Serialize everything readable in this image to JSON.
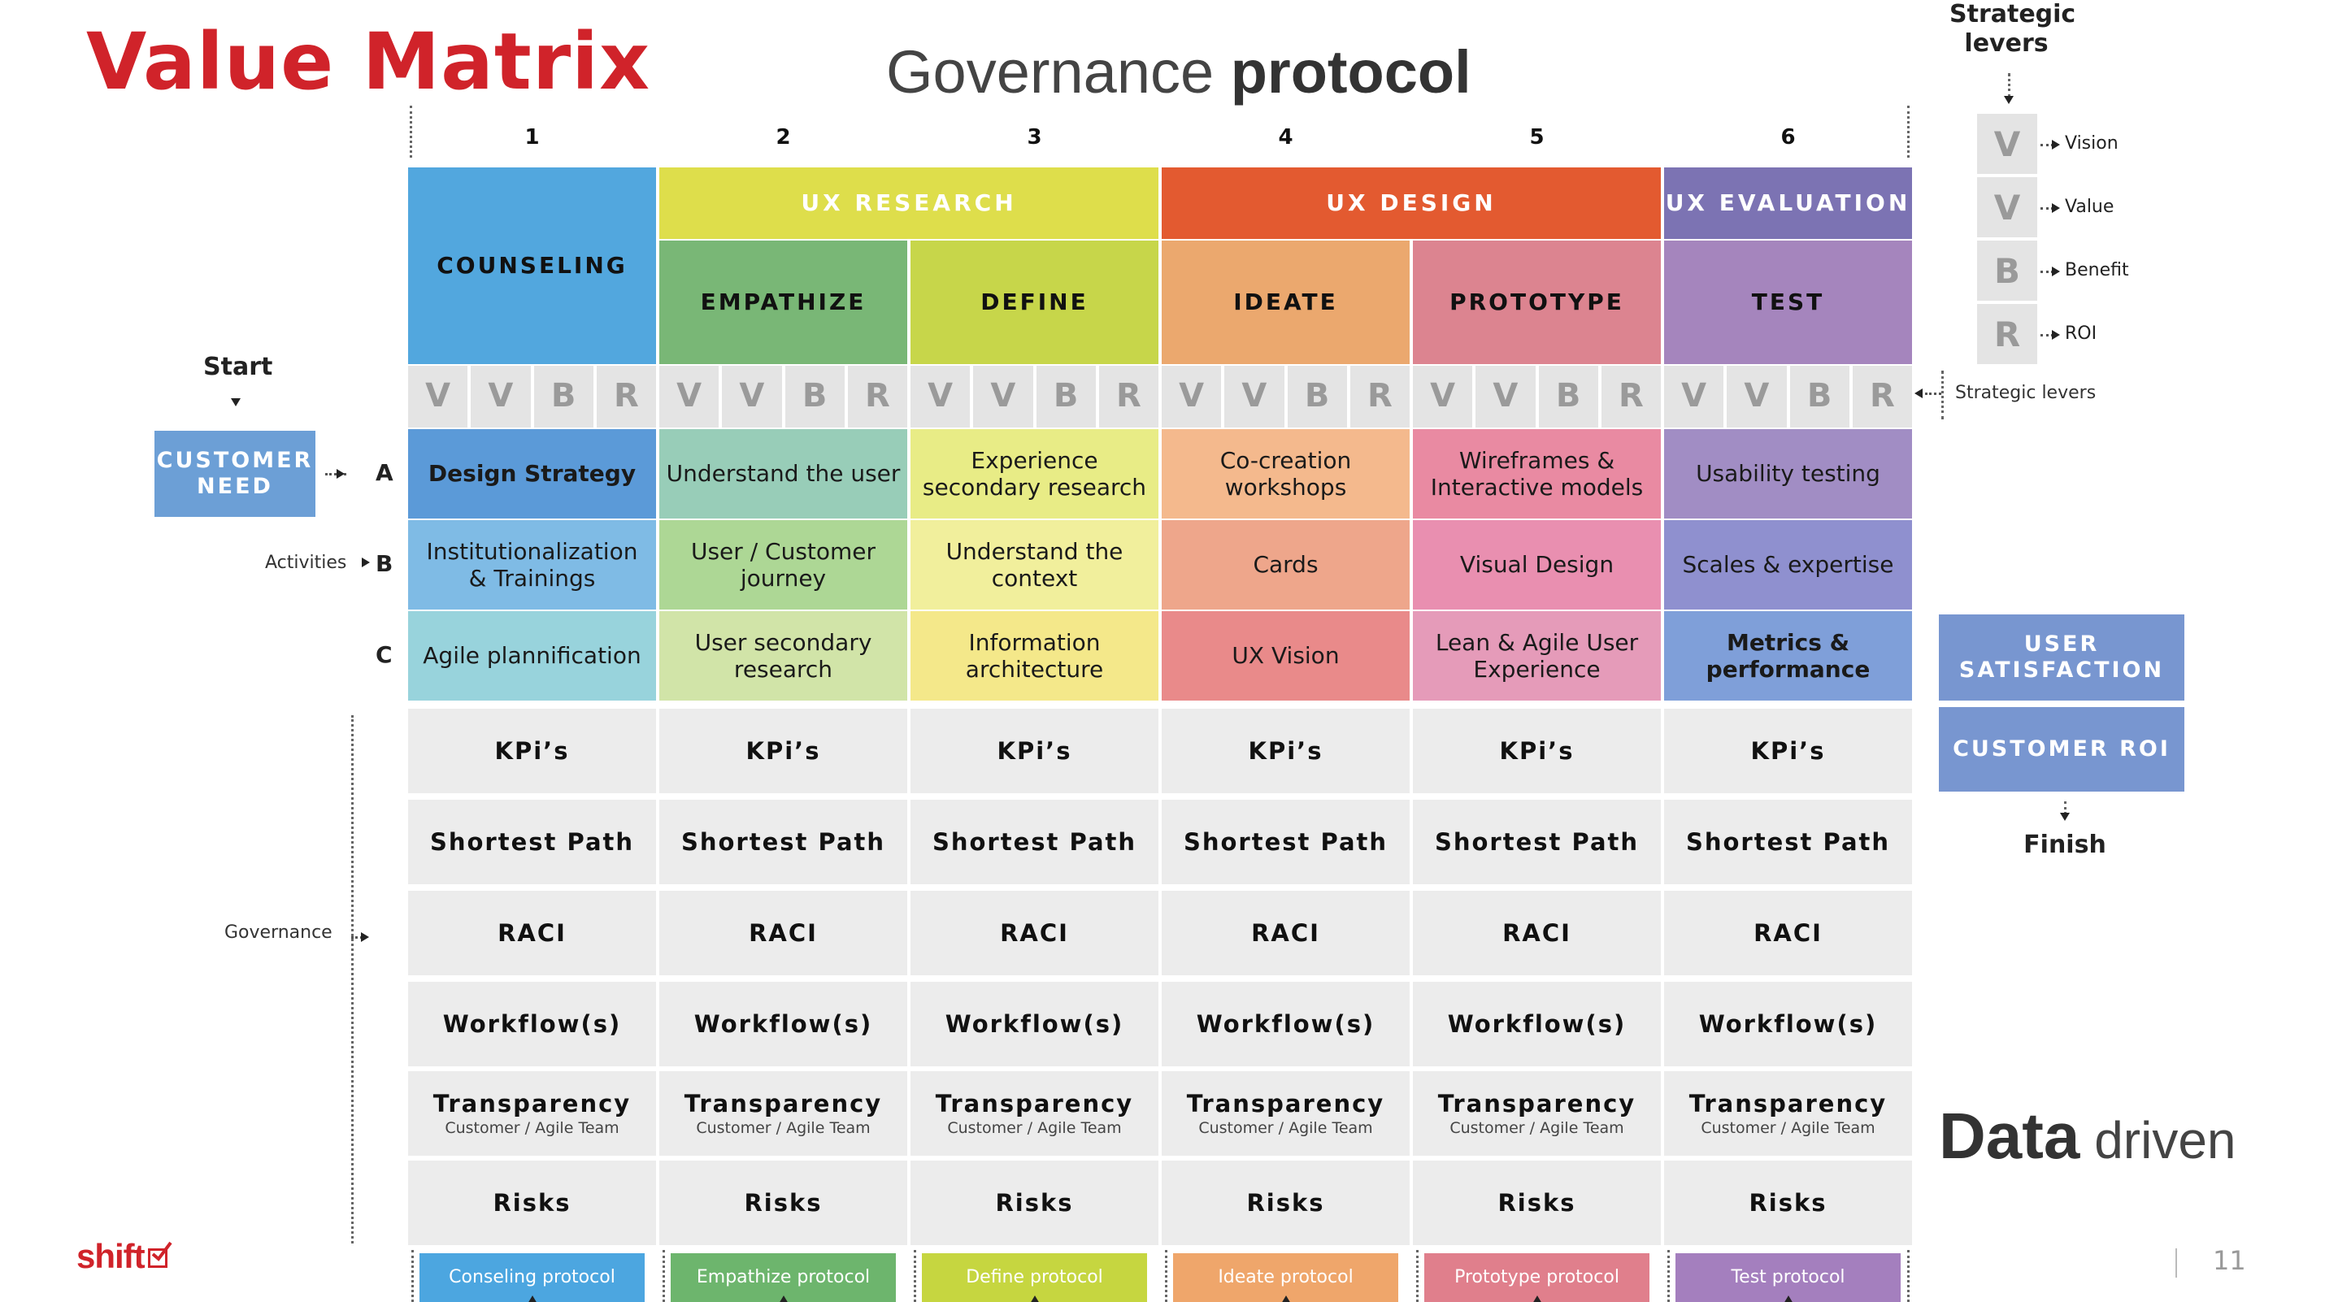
{
  "slide": {
    "title": "Value Matrix",
    "subtitle_light": "Governance ",
    "subtitle_bold": "protocol",
    "page_number": "11",
    "data_bold": "Data",
    "data_light": " driven",
    "logo_text": "shift",
    "colors": {
      "title_red": "#d0232a"
    }
  },
  "columns": [
    {
      "num": "1",
      "phase": "COUNSELING",
      "activities": [
        "Design Strategy",
        "Institutionalization & Trainings",
        "Agile plannification"
      ],
      "protocol": "Conseling protocol",
      "phase_color": "#52a7de",
      "protocol_color": "#4ca6e0",
      "activity_colors": [
        "#5b9ad8",
        "#7fbbe5",
        "#98d3dc"
      ]
    },
    {
      "num": "2",
      "phase": "EMPATHIZE",
      "activities": [
        "Understand the user",
        "User / Customer journey",
        "User  secondary research"
      ],
      "protocol": "Empathize protocol",
      "phase_color": "#79b776",
      "protocol_color": "#6db56d",
      "activity_colors": [
        "#98cdb8",
        "#add795",
        "#d1e4a8"
      ]
    },
    {
      "num": "3",
      "phase": "DEFINE",
      "activities": [
        "Experience secondary research",
        "Understand the context",
        "Information architecture"
      ],
      "protocol": "Define protocol",
      "phase_color": "#c7d64a",
      "protocol_color": "#c6d640",
      "activity_colors": [
        "#e8ec86",
        "#f1ef9c",
        "#f4e88a"
      ]
    },
    {
      "num": "4",
      "phase": "IDEATE",
      "activities": [
        "Co-creation workshops",
        "Cards",
        "UX Vision"
      ],
      "protocol": "Ideate protocol",
      "phase_color": "#eba86e",
      "protocol_color": "#efa66b",
      "activity_colors": [
        "#f4b98d",
        "#eea68b",
        "#e98a8a"
      ]
    },
    {
      "num": "5",
      "phase": "PROTOTYPE",
      "activities": [
        "Wireframes & Interactive models",
        "Visual Design",
        "Lean & Agile User Experience"
      ],
      "protocol": "Prototype protocol",
      "phase_color": "#dc8490",
      "protocol_color": "#e07f8c",
      "activity_colors": [
        "#e98aa2",
        "#e98fb0",
        "#e59bb9"
      ]
    },
    {
      "num": "6",
      "phase": "TEST",
      "activities": [
        "Usability testing",
        "Scales & expertise",
        "Metrics & performance"
      ],
      "protocol": "Test protocol",
      "phase_color": "#a585bd",
      "protocol_color": "#a47fbe",
      "activity_colors": [
        "#a18dc4",
        "#8f90cf",
        "#7f9fd9"
      ]
    }
  ],
  "groups": [
    {
      "label": "UX RESEARCH",
      "color": "#dede4b"
    },
    {
      "label": "UX DESIGN",
      "color": "#e35a30"
    },
    {
      "label": "UX EVALUATION",
      "color": "#7c73b3"
    }
  ],
  "levers": [
    "V",
    "V",
    "B",
    "R"
  ],
  "lever_legend": {
    "title": "Strategic levers",
    "items": [
      {
        "letter": "V",
        "label": "Vision"
      },
      {
        "letter": "V",
        "label": "Value"
      },
      {
        "letter": "B",
        "label": "Benefit"
      },
      {
        "letter": "R",
        "label": "ROI"
      }
    ],
    "row_label": "Strategic levers"
  },
  "row_letters": [
    "A",
    "B",
    "C"
  ],
  "governance": {
    "items": [
      "KPi’s",
      "Shortest Path",
      "RACI",
      "Workflow(s)",
      "Transparency",
      "Risks"
    ],
    "transparency_sub": "Customer / Agile Team"
  },
  "left": {
    "start": "Start",
    "customer_need": "CUSTOMER NEED",
    "activities": "Activities",
    "governance": "Governance",
    "customer_need_color": "#6c9fd6"
  },
  "right": {
    "user_satisfaction": "USER SATISFACTION",
    "customer_roi": "CUSTOMER ROI",
    "finish": "Finish",
    "tile_color": "#7896d0"
  }
}
